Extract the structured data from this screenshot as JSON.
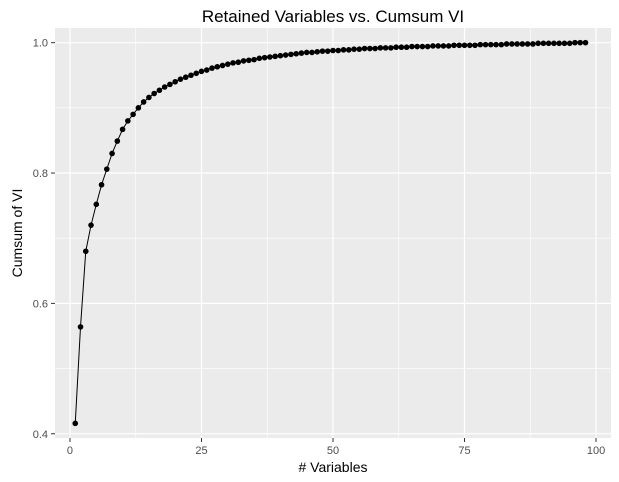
{
  "chart_data": {
    "type": "line",
    "title": "Retained Variables vs. Cumsum VI",
    "xlabel": "# Variables",
    "ylabel": "Cumsum of VI",
    "xlim": [
      -2.85,
      102.85
    ],
    "ylim": [
      0.3935,
      1.0225
    ],
    "x_ticks": [
      0,
      25,
      50,
      75,
      100
    ],
    "x_tick_labels": [
      "0",
      "25",
      "50",
      "75",
      "100"
    ],
    "y_ticks": [
      0.4,
      0.6,
      0.8,
      1.0
    ],
    "y_tick_labels": [
      "0.4",
      "0.6",
      "0.8",
      "1.0"
    ],
    "grid": true,
    "markers": true,
    "colors": {
      "panel": "#ebebeb",
      "grid": "#ffffff",
      "line": "#000000",
      "tick": "#4d4d4d"
    },
    "series": [
      {
        "x": [
          1,
          2,
          3,
          4,
          5,
          6,
          7,
          8,
          9,
          10,
          11,
          12,
          13,
          14,
          15,
          16,
          17,
          18,
          19,
          20,
          21,
          22,
          23,
          24,
          25,
          26,
          27,
          28,
          29,
          30,
          31,
          32,
          33,
          34,
          35,
          36,
          37,
          38,
          39,
          40,
          41,
          42,
          43,
          44,
          45,
          46,
          47,
          48,
          49,
          50,
          51,
          52,
          53,
          54,
          55,
          56,
          57,
          58,
          59,
          60,
          61,
          62,
          63,
          64,
          65,
          66,
          67,
          68,
          69,
          70,
          71,
          72,
          73,
          74,
          75,
          76,
          77,
          78,
          79,
          80,
          81,
          82,
          83,
          84,
          85,
          86,
          87,
          88,
          89,
          90,
          91,
          92,
          93,
          94,
          95,
          96,
          97,
          98
        ],
        "y": [
          0.416,
          0.564,
          0.68,
          0.72,
          0.752,
          0.782,
          0.806,
          0.83,
          0.849,
          0.867,
          0.88,
          0.89,
          0.9,
          0.909,
          0.916,
          0.922,
          0.927,
          0.932,
          0.936,
          0.94,
          0.944,
          0.947,
          0.95,
          0.953,
          0.956,
          0.958,
          0.961,
          0.963,
          0.965,
          0.967,
          0.969,
          0.97,
          0.972,
          0.973,
          0.974,
          0.976,
          0.977,
          0.978,
          0.979,
          0.98,
          0.981,
          0.982,
          0.983,
          0.984,
          0.985,
          0.985,
          0.986,
          0.987,
          0.987,
          0.988,
          0.988,
          0.989,
          0.989,
          0.99,
          0.99,
          0.991,
          0.991,
          0.991,
          0.992,
          0.992,
          0.992,
          0.993,
          0.993,
          0.993,
          0.994,
          0.994,
          0.994,
          0.994,
          0.995,
          0.995,
          0.995,
          0.995,
          0.996,
          0.996,
          0.996,
          0.996,
          0.996,
          0.997,
          0.997,
          0.997,
          0.997,
          0.997,
          0.998,
          0.998,
          0.998,
          0.998,
          0.998,
          0.998,
          0.999,
          0.999,
          0.999,
          0.999,
          0.999,
          0.999,
          0.999,
          1.0,
          1.0,
          1.0
        ]
      }
    ]
  }
}
